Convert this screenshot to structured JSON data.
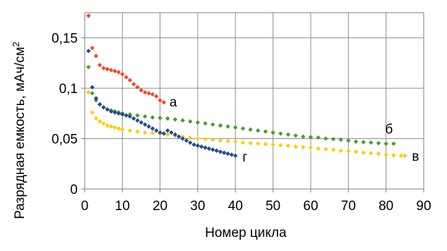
{
  "chart_data": {
    "type": "scatter",
    "title": "",
    "xlabel": "Номер цикла",
    "ylabel": "Разрядная емкость, мАч/см",
    "ylabel_sup": "2",
    "xlim": [
      0,
      90
    ],
    "ylim": [
      0,
      0.175
    ],
    "x_ticks": [
      "0",
      "10",
      "20",
      "30",
      "40",
      "50",
      "60",
      "70",
      "80",
      "90"
    ],
    "y_ticks": [
      "0",
      "0,05",
      "0,1",
      "0,15"
    ],
    "grid": true,
    "legend": "none",
    "series": [
      {
        "name": "а",
        "color": "#f04a22",
        "points": [
          [
            1,
            0.172
          ],
          [
            2,
            0.14
          ],
          [
            3,
            0.132
          ],
          [
            4,
            0.123
          ],
          [
            5,
            0.12
          ],
          [
            6,
            0.119
          ],
          [
            7,
            0.118
          ],
          [
            8,
            0.117
          ],
          [
            9,
            0.116
          ],
          [
            10,
            0.114
          ],
          [
            11,
            0.111
          ],
          [
            12,
            0.108
          ],
          [
            13,
            0.104
          ],
          [
            14,
            0.101
          ],
          [
            15,
            0.098
          ],
          [
            16,
            0.096
          ],
          [
            17,
            0.095
          ],
          [
            18,
            0.094
          ],
          [
            19,
            0.092
          ],
          [
            20,
            0.088
          ],
          [
            21,
            0.086
          ]
        ]
      },
      {
        "name": "б",
        "color": "#4f9a2c",
        "points": [
          [
            1,
            0.121
          ],
          [
            2,
            0.095
          ],
          [
            3,
            0.088
          ],
          [
            4,
            0.084
          ],
          [
            5,
            0.081
          ],
          [
            6,
            0.079
          ],
          [
            7,
            0.078
          ],
          [
            8,
            0.077
          ],
          [
            9,
            0.076
          ],
          [
            10,
            0.075
          ],
          [
            12,
            0.074
          ],
          [
            14,
            0.073
          ],
          [
            16,
            0.072
          ],
          [
            18,
            0.071
          ],
          [
            20,
            0.0705
          ],
          [
            22,
            0.07
          ],
          [
            24,
            0.069
          ],
          [
            26,
            0.068
          ],
          [
            28,
            0.067
          ],
          [
            30,
            0.066
          ],
          [
            32,
            0.065
          ],
          [
            34,
            0.064
          ],
          [
            36,
            0.063
          ],
          [
            38,
            0.062
          ],
          [
            40,
            0.061
          ],
          [
            42,
            0.06
          ],
          [
            44,
            0.059
          ],
          [
            46,
            0.058
          ],
          [
            48,
            0.057
          ],
          [
            50,
            0.056
          ],
          [
            52,
            0.055
          ],
          [
            54,
            0.054
          ],
          [
            56,
            0.053
          ],
          [
            58,
            0.052
          ],
          [
            60,
            0.0515
          ],
          [
            62,
            0.051
          ],
          [
            64,
            0.05
          ],
          [
            66,
            0.0495
          ],
          [
            68,
            0.049
          ],
          [
            70,
            0.048
          ],
          [
            72,
            0.047
          ],
          [
            74,
            0.0465
          ],
          [
            76,
            0.046
          ],
          [
            78,
            0.0455
          ],
          [
            80,
            0.045
          ],
          [
            82,
            0.045
          ]
        ]
      },
      {
        "name": "в",
        "color": "#ffcc00",
        "points": [
          [
            1,
            0.096
          ],
          [
            2,
            0.076
          ],
          [
            3,
            0.07
          ],
          [
            4,
            0.067
          ],
          [
            5,
            0.065
          ],
          [
            6,
            0.063
          ],
          [
            7,
            0.062
          ],
          [
            8,
            0.061
          ],
          [
            9,
            0.06
          ],
          [
            10,
            0.059
          ],
          [
            12,
            0.058
          ],
          [
            14,
            0.057
          ],
          [
            16,
            0.056
          ],
          [
            18,
            0.0555
          ],
          [
            20,
            0.055
          ],
          [
            22,
            0.054
          ],
          [
            24,
            0.053
          ],
          [
            26,
            0.052
          ],
          [
            28,
            0.051
          ],
          [
            30,
            0.05
          ],
          [
            32,
            0.0495
          ],
          [
            34,
            0.049
          ],
          [
            36,
            0.048
          ],
          [
            38,
            0.0475
          ],
          [
            40,
            0.047
          ],
          [
            42,
            0.046
          ],
          [
            44,
            0.0455
          ],
          [
            46,
            0.045
          ],
          [
            48,
            0.0445
          ],
          [
            50,
            0.044
          ],
          [
            52,
            0.0435
          ],
          [
            54,
            0.043
          ],
          [
            56,
            0.042
          ],
          [
            58,
            0.0415
          ],
          [
            60,
            0.041
          ],
          [
            62,
            0.04
          ],
          [
            64,
            0.0395
          ],
          [
            66,
            0.039
          ],
          [
            68,
            0.038
          ],
          [
            70,
            0.0375
          ],
          [
            72,
            0.037
          ],
          [
            74,
            0.036
          ],
          [
            76,
            0.0355
          ],
          [
            78,
            0.035
          ],
          [
            80,
            0.034
          ],
          [
            82,
            0.0335
          ],
          [
            84,
            0.033
          ],
          [
            85,
            0.033
          ]
        ]
      },
      {
        "name": "г",
        "color": "#1f4e8c",
        "points": [
          [
            1,
            0.137
          ],
          [
            2,
            0.101
          ],
          [
            3,
            0.09
          ],
          [
            4,
            0.084
          ],
          [
            5,
            0.081
          ],
          [
            6,
            0.079
          ],
          [
            7,
            0.077
          ],
          [
            8,
            0.076
          ],
          [
            9,
            0.075
          ],
          [
            10,
            0.074
          ],
          [
            11,
            0.073
          ],
          [
            12,
            0.072
          ],
          [
            13,
            0.07
          ],
          [
            14,
            0.068
          ],
          [
            15,
            0.066
          ],
          [
            16,
            0.064
          ],
          [
            17,
            0.062
          ],
          [
            18,
            0.06
          ],
          [
            19,
            0.058
          ],
          [
            20,
            0.056
          ],
          [
            21,
            0.055
          ],
          [
            22,
            0.058
          ],
          [
            23,
            0.056
          ],
          [
            24,
            0.054
          ],
          [
            25,
            0.052
          ],
          [
            26,
            0.05
          ],
          [
            27,
            0.048
          ],
          [
            28,
            0.046
          ],
          [
            29,
            0.044
          ],
          [
            30,
            0.043
          ],
          [
            31,
            0.042
          ],
          [
            32,
            0.041
          ],
          [
            33,
            0.04
          ],
          [
            34,
            0.039
          ],
          [
            35,
            0.038
          ],
          [
            36,
            0.037
          ],
          [
            37,
            0.036
          ],
          [
            38,
            0.035
          ],
          [
            39,
            0.034
          ],
          [
            40,
            0.033
          ]
        ]
      }
    ]
  }
}
